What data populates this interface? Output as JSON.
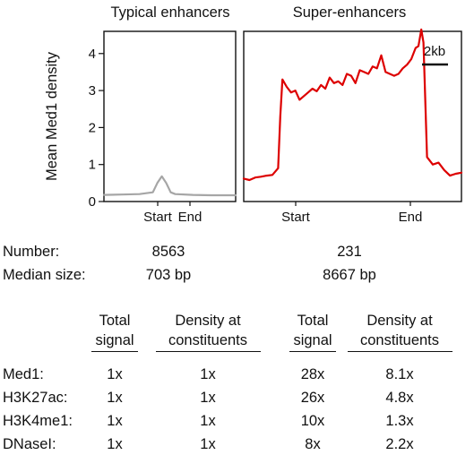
{
  "chart_data": [
    {
      "type": "line",
      "title": "Typical enhancers",
      "ylabel": "Mean Med1 density",
      "ylim": [
        0,
        4.6
      ],
      "yticks": [
        "0",
        "1",
        "2",
        "3",
        "4"
      ],
      "xticks": [
        "Start",
        "End"
      ],
      "series": [
        {
          "color": "#a6a6a6",
          "x": [
            -6,
            -4,
            -2,
            -0.5,
            0,
            0.5,
            1,
            1.5,
            2,
            4,
            6,
            8.8
          ],
          "y": [
            0.18,
            0.19,
            0.2,
            0.25,
            0.5,
            0.68,
            0.5,
            0.25,
            0.2,
            0.18,
            0.17,
            0.17
          ]
        }
      ]
    },
    {
      "type": "line",
      "title": "Super-enhancers",
      "ylim": [
        0,
        4.6
      ],
      "xticks": [
        "Start",
        "End"
      ],
      "scale_bar": "2kb",
      "series": [
        {
          "color": "#dd0000",
          "x": [
            -2.4,
            -2,
            -1.6,
            -1.2,
            -0.8,
            -0.4,
            0,
            0.15,
            0.3,
            0.6,
            0.9,
            1.2,
            1.5,
            1.8,
            2.1,
            2.4,
            2.7,
            3,
            3.3,
            3.6,
            3.9,
            4.2,
            4.5,
            4.8,
            5.1,
            5.4,
            5.7,
            6,
            6.3,
            6.6,
            6.9,
            7.2,
            7.5,
            7.8,
            8.1,
            8.4,
            8.7,
            9,
            9.3,
            9.6,
            9.8,
            10.0,
            10.15,
            10.4,
            10.8,
            11.2,
            11.6,
            12,
            12.4,
            12.8
          ],
          "y": [
            0.62,
            0.58,
            0.65,
            0.67,
            0.7,
            0.72,
            0.9,
            2.3,
            3.3,
            3.1,
            2.95,
            3.0,
            2.75,
            2.85,
            2.95,
            3.05,
            2.98,
            3.15,
            3.05,
            3.35,
            3.2,
            3.25,
            3.15,
            3.45,
            3.4,
            3.2,
            3.55,
            3.5,
            3.45,
            3.65,
            3.6,
            3.95,
            3.5,
            3.45,
            3.4,
            3.45,
            3.6,
            3.7,
            3.85,
            4.15,
            4.2,
            4.65,
            4.3,
            1.2,
            1.0,
            1.05,
            0.85,
            0.7,
            0.75,
            0.78
          ]
        }
      ]
    }
  ],
  "summary": {
    "rows": [
      {
        "label": "Number:",
        "typical": "8563",
        "super": "231"
      },
      {
        "label": "Median size:",
        "typical": "703 bp",
        "super": "8667 bp"
      }
    ]
  },
  "table": {
    "headers": [
      "Total signal",
      "Density at constituents",
      "Total signal",
      "Density at constituents"
    ],
    "headers_lines": [
      [
        "Total",
        "signal"
      ],
      [
        "Density at",
        "constituents"
      ],
      [
        "Total",
        "signal"
      ],
      [
        "Density at",
        "constituents"
      ]
    ],
    "rows": [
      {
        "label": "Med1:",
        "cells": [
          "1x",
          "1x",
          "28x",
          "8.1x"
        ]
      },
      {
        "label": "H3K27ac:",
        "cells": [
          "1x",
          "1x",
          "26x",
          "4.8x"
        ]
      },
      {
        "label": "H3K4me1:",
        "cells": [
          "1x",
          "1x",
          "10x",
          "1.3x"
        ]
      },
      {
        "label": "DNaseI:",
        "cells": [
          "1x",
          "1x",
          "8x",
          "2.2x"
        ]
      }
    ]
  }
}
